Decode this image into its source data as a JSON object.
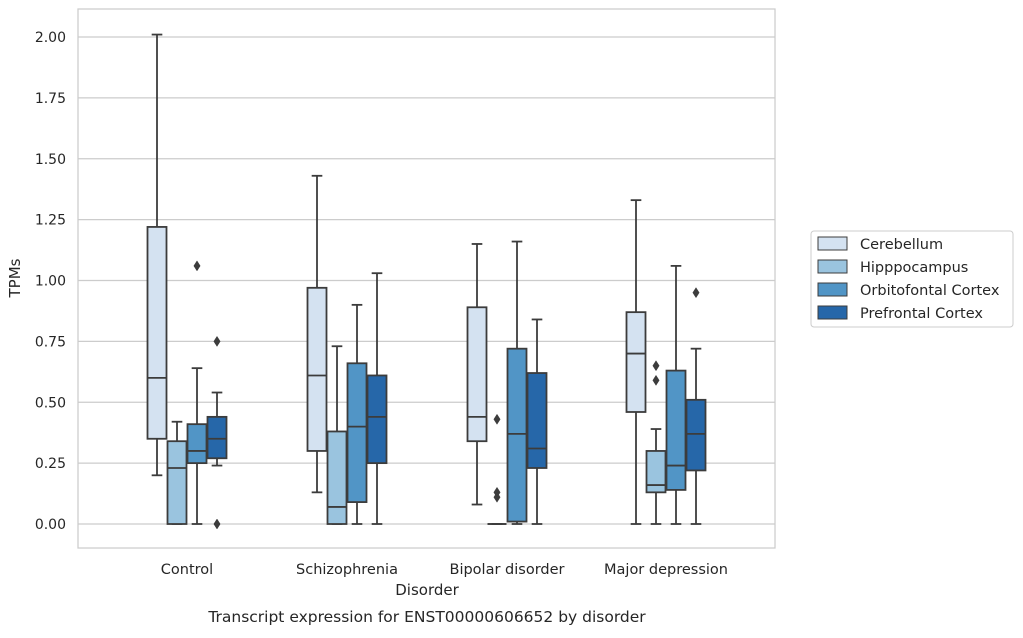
{
  "caption": "Transcript expression for ENST00000606652 by disorder",
  "chart_data": {
    "type": "boxplot",
    "xlabel": "Disorder",
    "ylabel": "TPMs",
    "ylim": [
      -0.1,
      2.12
    ],
    "yticks": [
      "0.00",
      "0.25",
      "0.50",
      "0.75",
      "1.00",
      "1.25",
      "1.50",
      "1.75",
      "2.00"
    ],
    "grid": "horizontal",
    "legend_position": "right",
    "categories": [
      "Control",
      "Schizophrenia",
      "Bipolar disorder",
      "Major depression"
    ],
    "series": [
      {
        "name": "Cerebellum",
        "color": "#d4e2f1",
        "boxes": [
          {
            "whislo": 0.2,
            "q1": 0.35,
            "med": 0.6,
            "q3": 1.22,
            "whishi": 2.01,
            "fliers": []
          },
          {
            "whislo": 0.13,
            "q1": 0.3,
            "med": 0.61,
            "q3": 0.97,
            "whishi": 1.43,
            "fliers": []
          },
          {
            "whislo": 0.08,
            "q1": 0.34,
            "med": 0.44,
            "q3": 0.89,
            "whishi": 1.15,
            "fliers": []
          },
          {
            "whislo": 0.0,
            "q1": 0.46,
            "med": 0.7,
            "q3": 0.87,
            "whishi": 1.33,
            "fliers": []
          }
        ]
      },
      {
        "name": "Hipppocampus",
        "color": "#9ac4df",
        "boxes": [
          {
            "whislo": 0.0,
            "q1": 0.0,
            "med": 0.23,
            "q3": 0.34,
            "whishi": 0.42,
            "fliers": []
          },
          {
            "whislo": 0.0,
            "q1": 0.0,
            "med": 0.07,
            "q3": 0.38,
            "whishi": 0.73,
            "fliers": []
          },
          {
            "whislo": 0.0,
            "q1": 0.0,
            "med": 0.0,
            "q3": 0.0,
            "whishi": 0.0,
            "fliers": [
              0.43,
              0.13,
              0.11
            ]
          },
          {
            "whislo": 0.0,
            "q1": 0.13,
            "med": 0.16,
            "q3": 0.3,
            "whishi": 0.39,
            "fliers": [
              0.65,
              0.59
            ]
          }
        ]
      },
      {
        "name": "Orbitofontal Cortex",
        "color": "#5195c6",
        "boxes": [
          {
            "whislo": 0.0,
            "q1": 0.25,
            "med": 0.3,
            "q3": 0.41,
            "whishi": 0.64,
            "fliers": [
              1.06
            ]
          },
          {
            "whislo": 0.0,
            "q1": 0.09,
            "med": 0.4,
            "q3": 0.66,
            "whishi": 0.9,
            "fliers": []
          },
          {
            "whislo": 0.0,
            "q1": 0.01,
            "med": 0.37,
            "q3": 0.72,
            "whishi": 1.16,
            "fliers": []
          },
          {
            "whislo": 0.0,
            "q1": 0.14,
            "med": 0.24,
            "q3": 0.63,
            "whishi": 1.06,
            "fliers": []
          }
        ]
      },
      {
        "name": "Prefrontal Cortex",
        "color": "#2667a9",
        "boxes": [
          {
            "whislo": 0.24,
            "q1": 0.27,
            "med": 0.35,
            "q3": 0.44,
            "whishi": 0.54,
            "fliers": [
              0.75,
              0.0
            ]
          },
          {
            "whislo": 0.0,
            "q1": 0.25,
            "med": 0.44,
            "q3": 0.61,
            "whishi": 1.03,
            "fliers": []
          },
          {
            "whislo": 0.0,
            "q1": 0.23,
            "med": 0.31,
            "q3": 0.62,
            "whishi": 0.84,
            "fliers": []
          },
          {
            "whislo": 0.0,
            "q1": 0.22,
            "med": 0.37,
            "q3": 0.51,
            "whishi": 0.72,
            "fliers": [
              0.95
            ]
          }
        ]
      }
    ]
  }
}
